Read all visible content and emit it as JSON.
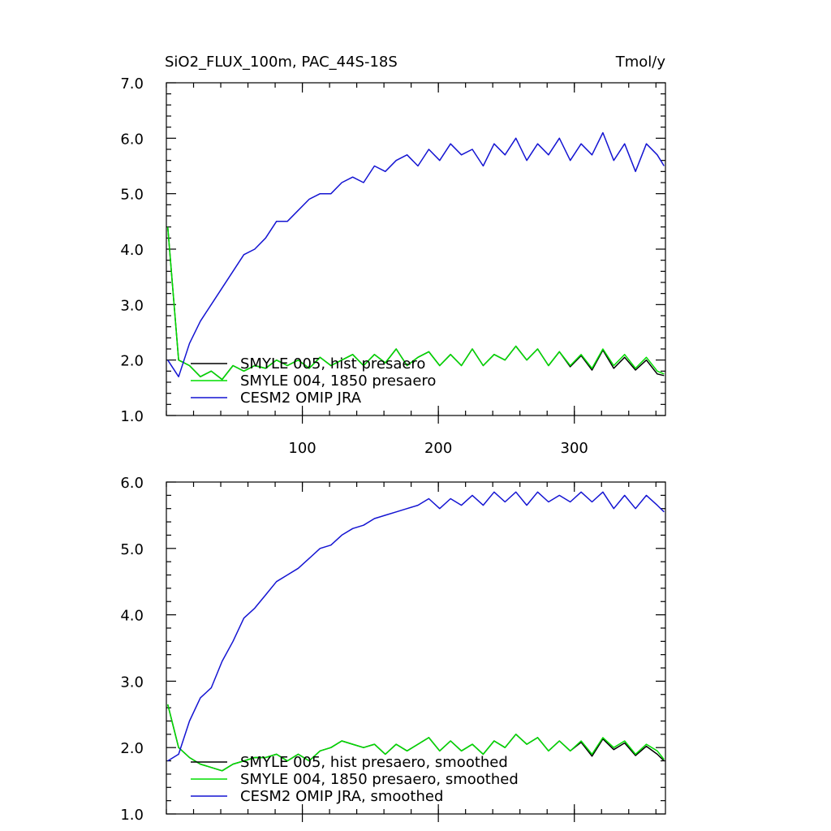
{
  "chart_data": [
    {
      "type": "line",
      "title": "SiO2_FLUX_100m, PAC_44S-18S",
      "units": "Tmol/y",
      "x": [
        1,
        9,
        17,
        25,
        33,
        41,
        49,
        57,
        65,
        73,
        81,
        89,
        97,
        105,
        113,
        121,
        129,
        137,
        145,
        153,
        161,
        169,
        177,
        185,
        193,
        201,
        209,
        217,
        225,
        233,
        241,
        249,
        257,
        265,
        273,
        281,
        289,
        297,
        305,
        313,
        321,
        329,
        337,
        345,
        353,
        361,
        366
      ],
      "series": [
        {
          "name": "SMYLE 005, hist presaero",
          "color": "#000000",
          "values": [
            4.4,
            2.0,
            1.9,
            1.7,
            1.8,
            1.65,
            1.9,
            1.8,
            1.9,
            1.85,
            2.0,
            1.9,
            2.0,
            1.85,
            2.05,
            1.9,
            2.0,
            2.1,
            1.9,
            2.1,
            1.95,
            2.2,
            1.9,
            2.05,
            2.15,
            1.9,
            2.1,
            1.9,
            2.2,
            1.9,
            2.1,
            2.0,
            2.25,
            2.0,
            2.2,
            1.9,
            2.15,
            1.88,
            2.08,
            1.82,
            2.18,
            1.85,
            2.05,
            1.82,
            2.0,
            1.75,
            1.72
          ]
        },
        {
          "name": "SMYLE 004, 1850 presaero",
          "color": "#00dd00",
          "values": [
            4.4,
            2.0,
            1.9,
            1.7,
            1.8,
            1.65,
            1.9,
            1.8,
            1.9,
            1.85,
            2.0,
            1.9,
            2.0,
            1.85,
            2.05,
            1.9,
            2.0,
            2.1,
            1.9,
            2.1,
            1.95,
            2.2,
            1.9,
            2.05,
            2.15,
            1.9,
            2.1,
            1.9,
            2.2,
            1.9,
            2.1,
            2.0,
            2.25,
            2.0,
            2.2,
            1.9,
            2.15,
            1.9,
            2.1,
            1.85,
            2.2,
            1.9,
            2.1,
            1.85,
            2.05,
            1.8,
            1.75
          ]
        },
        {
          "name": "CESM2 OMIP JRA",
          "color": "#1414d2",
          "values": [
            2.0,
            1.7,
            2.3,
            2.7,
            3.0,
            3.3,
            3.6,
            3.9,
            4.0,
            4.2,
            4.5,
            4.5,
            4.7,
            4.9,
            5.0,
            5.0,
            5.2,
            5.3,
            5.2,
            5.5,
            5.4,
            5.6,
            5.7,
            5.5,
            5.8,
            5.6,
            5.9,
            5.7,
            5.8,
            5.5,
            5.9,
            5.7,
            6.0,
            5.6,
            5.9,
            5.7,
            6.0,
            5.6,
            5.9,
            5.7,
            6.1,
            5.6,
            5.9,
            5.4,
            5.9,
            5.7,
            5.5
          ]
        }
      ],
      "xlim": [
        0,
        367
      ],
      "xticks": [
        100,
        200,
        300
      ],
      "ylim": [
        1,
        7
      ],
      "yticks": [
        {
          "value": 1,
          "label": "1.0"
        },
        {
          "value": 2,
          "label": "2.0"
        },
        {
          "value": 3,
          "label": "3.0"
        },
        {
          "value": 4,
          "label": "4.0"
        },
        {
          "value": 5,
          "label": "5.0"
        },
        {
          "value": 6,
          "label": "6.0"
        },
        {
          "value": 7,
          "label": "7.0"
        }
      ],
      "legend": "lower left"
    },
    {
      "type": "line",
      "x": [
        1,
        9,
        17,
        25,
        33,
        41,
        49,
        57,
        65,
        73,
        81,
        89,
        97,
        105,
        113,
        121,
        129,
        137,
        145,
        153,
        161,
        169,
        177,
        185,
        193,
        201,
        209,
        217,
        225,
        233,
        241,
        249,
        257,
        265,
        273,
        281,
        289,
        297,
        305,
        313,
        321,
        329,
        337,
        345,
        353,
        361,
        366
      ],
      "series": [
        {
          "name": "SMYLE 005, hist presaero, smoothed",
          "color": "#000000",
          "values": [
            2.65,
            2.0,
            1.85,
            1.75,
            1.7,
            1.65,
            1.75,
            1.8,
            1.85,
            1.85,
            1.9,
            1.8,
            1.9,
            1.8,
            1.95,
            2.0,
            2.1,
            2.05,
            2.0,
            2.05,
            1.9,
            2.05,
            1.95,
            2.05,
            2.15,
            1.95,
            2.1,
            1.95,
            2.05,
            1.9,
            2.1,
            2.0,
            2.2,
            2.05,
            2.15,
            1.95,
            2.1,
            1.95,
            2.08,
            1.87,
            2.13,
            1.97,
            2.07,
            1.88,
            2.02,
            1.9,
            1.8
          ]
        },
        {
          "name": "SMYLE 004, 1850 presaero, smoothed",
          "color": "#00dd00",
          "values": [
            2.65,
            2.0,
            1.85,
            1.75,
            1.7,
            1.65,
            1.75,
            1.8,
            1.85,
            1.85,
            1.9,
            1.8,
            1.9,
            1.8,
            1.95,
            2.0,
            2.1,
            2.05,
            2.0,
            2.05,
            1.9,
            2.05,
            1.95,
            2.05,
            2.15,
            1.95,
            2.1,
            1.95,
            2.05,
            1.9,
            2.1,
            2.0,
            2.2,
            2.05,
            2.15,
            1.95,
            2.1,
            1.95,
            2.1,
            1.9,
            2.15,
            2.0,
            2.1,
            1.9,
            2.05,
            1.95,
            1.82
          ]
        },
        {
          "name": "CESM2 OMIP JRA, smoothed",
          "color": "#1414d2",
          "values": [
            1.8,
            1.9,
            2.4,
            2.75,
            2.9,
            3.3,
            3.6,
            3.95,
            4.1,
            4.3,
            4.5,
            4.6,
            4.7,
            4.85,
            5.0,
            5.05,
            5.2,
            5.3,
            5.35,
            5.45,
            5.5,
            5.55,
            5.6,
            5.65,
            5.75,
            5.6,
            5.75,
            5.65,
            5.8,
            5.65,
            5.85,
            5.7,
            5.85,
            5.65,
            5.85,
            5.7,
            5.8,
            5.7,
            5.85,
            5.7,
            5.85,
            5.6,
            5.8,
            5.6,
            5.8,
            5.65,
            5.55
          ]
        }
      ],
      "xlim": [
        0,
        367
      ],
      "xticks": [
        100,
        200,
        300
      ],
      "ylim": [
        1,
        6
      ],
      "yticks": [
        {
          "value": 1,
          "label": "1.0"
        },
        {
          "value": 2,
          "label": "2.0"
        },
        {
          "value": 3,
          "label": "3.0"
        },
        {
          "value": 4,
          "label": "4.0"
        },
        {
          "value": 5,
          "label": "5.0"
        },
        {
          "value": 6,
          "label": "6.0"
        }
      ],
      "legend": "lower left"
    }
  ]
}
